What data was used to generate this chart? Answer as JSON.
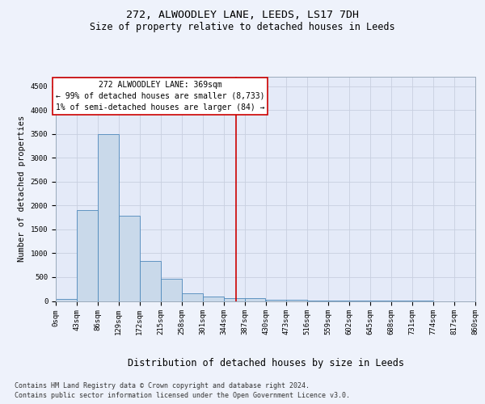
{
  "title": "272, ALWOODLEY LANE, LEEDS, LS17 7DH",
  "subtitle": "Size of property relative to detached houses in Leeds",
  "xlabel": "Distribution of detached houses by size in Leeds",
  "ylabel": "Number of detached properties",
  "footer_line1": "Contains HM Land Registry data © Crown copyright and database right 2024.",
  "footer_line2": "Contains public sector information licensed under the Open Government Licence v3.0.",
  "bin_edges": [
    0,
    43,
    86,
    129,
    172,
    215,
    258,
    301,
    344,
    387,
    430,
    473,
    516,
    559,
    602,
    645,
    688,
    731,
    774,
    817,
    860
  ],
  "bar_heights": [
    40,
    1900,
    3500,
    1780,
    840,
    460,
    160,
    95,
    60,
    60,
    30,
    20,
    10,
    5,
    2,
    1,
    1,
    1,
    0,
    0
  ],
  "bar_color": "#c9d9ea",
  "bar_edge_color": "#4d88bb",
  "property_size": 369,
  "property_line_color": "#cc0000",
  "annotation_text": "272 ALWOODLEY LANE: 369sqm\n← 99% of detached houses are smaller (8,733)\n1% of semi-detached houses are larger (84) →",
  "annotation_box_color": "#cc0000",
  "ylim": [
    0,
    4700
  ],
  "yticks": [
    0,
    500,
    1000,
    1500,
    2000,
    2500,
    3000,
    3500,
    4000,
    4500
  ],
  "background_color": "#eef2fb",
  "plot_background": "#e4eaf8",
  "grid_color": "#c8cfe0",
  "title_fontsize": 9.5,
  "subtitle_fontsize": 8.5,
  "xlabel_fontsize": 8.5,
  "ylabel_fontsize": 7.5,
  "tick_fontsize": 6.5,
  "annot_fontsize": 7.0,
  "footer_fontsize": 6.0
}
